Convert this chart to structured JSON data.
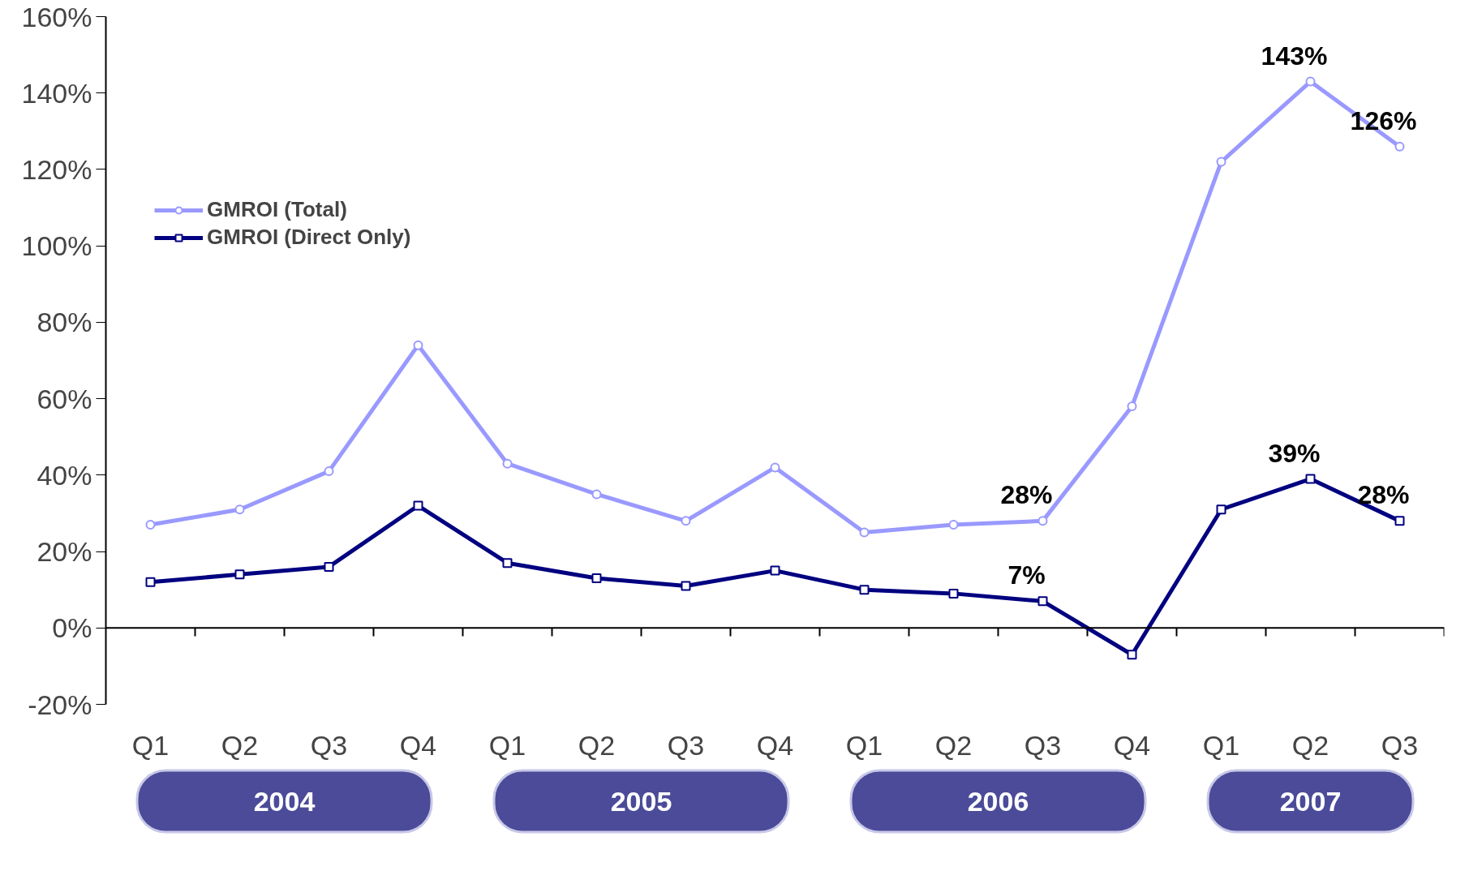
{
  "chart_data": {
    "type": "line",
    "categories": [
      "Q1",
      "Q2",
      "Q3",
      "Q4",
      "Q1",
      "Q2",
      "Q3",
      "Q4",
      "Q1",
      "Q2",
      "Q3",
      "Q4",
      "Q1",
      "Q2",
      "Q3"
    ],
    "series": [
      {
        "name": "GMROI (Total)",
        "color": "#9999ff",
        "marker": "circle",
        "values": [
          27,
          31,
          41,
          74,
          43,
          35,
          28,
          42,
          25,
          27,
          28,
          58,
          122,
          143,
          126
        ],
        "value_labels": [
          null,
          null,
          null,
          null,
          null,
          null,
          null,
          null,
          null,
          null,
          "28%",
          null,
          null,
          "143%",
          "126%"
        ]
      },
      {
        "name": "GMROI (Direct Only)",
        "color": "#000080",
        "marker": "square",
        "values": [
          12,
          14,
          16,
          32,
          17,
          13,
          11,
          15,
          10,
          9,
          7,
          -7,
          31,
          39,
          28
        ],
        "value_labels": [
          null,
          null,
          null,
          null,
          null,
          null,
          null,
          null,
          null,
          null,
          "7%",
          null,
          null,
          "39%",
          "28%"
        ]
      }
    ],
    "ylim": [
      -20,
      160
    ],
    "yticks": [
      {
        "value": -20,
        "label": "-20%"
      },
      {
        "value": 0,
        "label": "0%"
      },
      {
        "value": 20,
        "label": "20%"
      },
      {
        "value": 40,
        "label": "40%"
      },
      {
        "value": 60,
        "label": "60%"
      },
      {
        "value": 80,
        "label": "80%"
      },
      {
        "value": 100,
        "label": "100%"
      },
      {
        "value": 120,
        "label": "120%"
      },
      {
        "value": 140,
        "label": "140%"
      },
      {
        "value": 160,
        "label": "160%"
      }
    ],
    "annotations": [
      "2004",
      "2005",
      "2006",
      "2007"
    ],
    "legend": "top left",
    "line_style": "solid"
  }
}
